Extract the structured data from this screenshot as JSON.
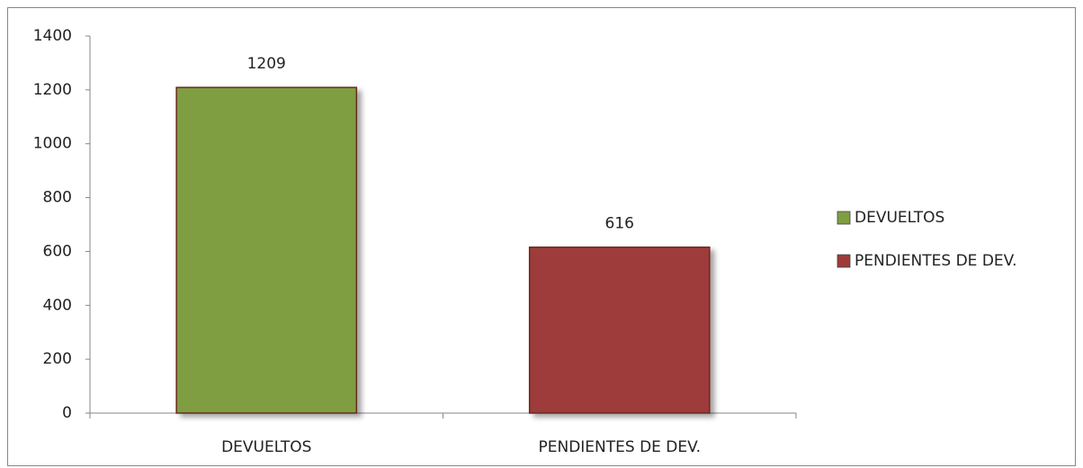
{
  "chart_data": {
    "type": "bar",
    "categories": [
      "DEVUELTOS",
      "PENDIENTES DE DEV."
    ],
    "values": [
      1209,
      616
    ],
    "colors": [
      "#7f9e42",
      "#9e3b3a"
    ],
    "ylim": [
      0,
      1400
    ],
    "yticks": [
      0,
      200,
      400,
      600,
      800,
      1000,
      1200,
      1400
    ],
    "legend": "right"
  }
}
